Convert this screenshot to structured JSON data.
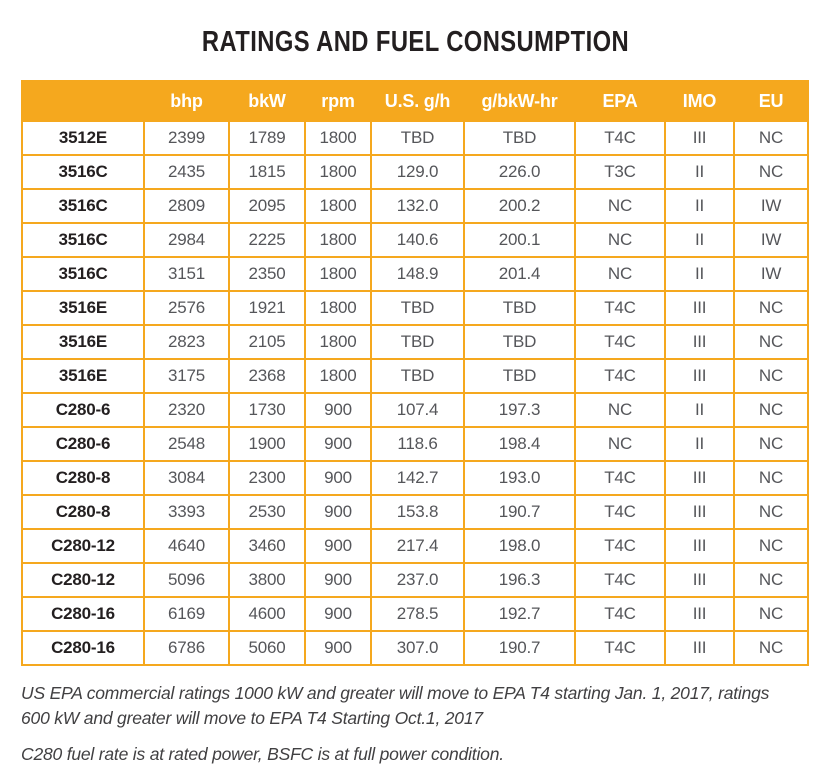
{
  "title": "RATINGS AND FUEL CONSUMPTION",
  "colors": {
    "accent": "#F5A81E",
    "header_text": "#FFFFFF",
    "data_text": "#55565A",
    "model_text": "#231F20",
    "footnote_text": "#414042"
  },
  "table": {
    "columns": [
      "",
      "bhp",
      "bkW",
      "rpm",
      "U.S. g/h",
      "g/bkW-hr",
      "EPA",
      "IMO",
      "EU"
    ],
    "column_keys": [
      "model",
      "bhp",
      "bkw",
      "rpm",
      "us-g-h",
      "g-bkw-hr",
      "epa",
      "imo",
      "eu"
    ],
    "rows": [
      [
        "3512E",
        "2399",
        "1789",
        "1800",
        "TBD",
        "TBD",
        "T4C",
        "III",
        "NC"
      ],
      [
        "3516C",
        "2435",
        "1815",
        "1800",
        "129.0",
        "226.0",
        "T3C",
        "II",
        "NC"
      ],
      [
        "3516C",
        "2809",
        "2095",
        "1800",
        "132.0",
        "200.2",
        "NC",
        "II",
        "IW"
      ],
      [
        "3516C",
        "2984",
        "2225",
        "1800",
        "140.6",
        "200.1",
        "NC",
        "II",
        "IW"
      ],
      [
        "3516C",
        "3151",
        "2350",
        "1800",
        "148.9",
        "201.4",
        "NC",
        "II",
        "IW"
      ],
      [
        "3516E",
        "2576",
        "1921",
        "1800",
        "TBD",
        "TBD",
        "T4C",
        "III",
        "NC"
      ],
      [
        "3516E",
        "2823",
        "2105",
        "1800",
        "TBD",
        "TBD",
        "T4C",
        "III",
        "NC"
      ],
      [
        "3516E",
        "3175",
        "2368",
        "1800",
        "TBD",
        "TBD",
        "T4C",
        "III",
        "NC"
      ],
      [
        "C280-6",
        "2320",
        "1730",
        "900",
        "107.4",
        "197.3",
        "NC",
        "II",
        "NC"
      ],
      [
        "C280-6",
        "2548",
        "1900",
        "900",
        "118.6",
        "198.4",
        "NC",
        "II",
        "NC"
      ],
      [
        "C280-8",
        "3084",
        "2300",
        "900",
        "142.7",
        "193.0",
        "T4C",
        "III",
        "NC"
      ],
      [
        "C280-8",
        "3393",
        "2530",
        "900",
        "153.8",
        "190.7",
        "T4C",
        "III",
        "NC"
      ],
      [
        "C280-12",
        "4640",
        "3460",
        "900",
        "217.4",
        "198.0",
        "T4C",
        "III",
        "NC"
      ],
      [
        "C280-12",
        "5096",
        "3800",
        "900",
        "237.0",
        "196.3",
        "T4C",
        "III",
        "NC"
      ],
      [
        "C280-16",
        "6169",
        "4600",
        "900",
        "278.5",
        "192.7",
        "T4C",
        "III",
        "NC"
      ],
      [
        "C280-16",
        "6786",
        "5060",
        "900",
        "307.0",
        "190.7",
        "T4C",
        "III",
        "NC"
      ]
    ]
  },
  "footnotes": [
    {
      "lines": [
        "US EPA commercial ratings 1000 kW and greater will move to EPA T4 starting Jan. 1, 2017, ratings",
        "600 kW and greater will move to EPA T4 Starting Oct.1, 2017"
      ]
    },
    {
      "lines": [
        "C280 fuel rate is at rated power, BSFC is at full power condition."
      ]
    }
  ]
}
